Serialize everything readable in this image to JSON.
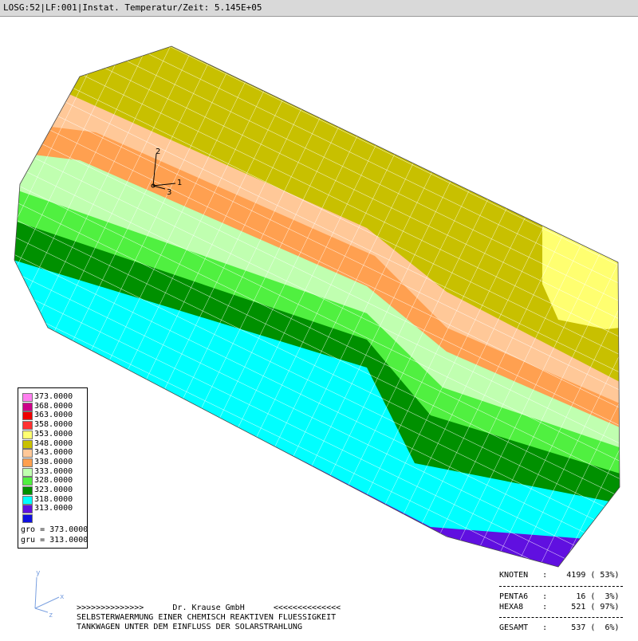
{
  "title": "LOSG:52|LF:001|Instat. Temperatur/Zeit: 5.145E+05",
  "legend": {
    "entries": [
      {
        "label": "373.0000",
        "color": "#ff7fef"
      },
      {
        "label": "368.0000",
        "color": "#cc0088"
      },
      {
        "label": "363.0000",
        "color": "#ee0000"
      },
      {
        "label": "358.0000",
        "color": "#ff3030"
      },
      {
        "label": "353.0000",
        "color": "#ffff70"
      },
      {
        "label": "348.0000",
        "color": "#c8c000"
      },
      {
        "label": "343.0000",
        "color": "#ffc898"
      },
      {
        "label": "338.0000",
        "color": "#ffa050"
      },
      {
        "label": "333.0000",
        "color": "#c0ffb0"
      },
      {
        "label": "328.0000",
        "color": "#50f040"
      },
      {
        "label": "323.0000",
        "color": "#009000"
      },
      {
        "label": "318.0000",
        "color": "#00ffff"
      },
      {
        "label": "313.0000",
        "color": "#6010e0"
      },
      {
        "label": "",
        "color": "#1010e0"
      }
    ],
    "gro": "gro = 373.0000",
    "gru": "gru = 313.0000"
  },
  "triad_labels": {
    "x": "1",
    "y": "2",
    "z": "3"
  },
  "mini_triad": {
    "x": "x",
    "y": "y",
    "z": "z"
  },
  "footer": {
    "line1": ">>>>>>>>>>>>>>      Dr. Krause GmbH      <<<<<<<<<<<<<<",
    "line2": "SELBSTERWAERMUNG EINER CHEMISCH REAKTIVEN FLUESSIGKEIT",
    "line3": "TANKWAGEN UNTER DEM EINFLUSS DER SOLARSTRAHLUNG"
  },
  "stats": {
    "knoten": "KNOTEN   :    4199 ( 53%)",
    "penta6": "PENTA6   :      16 (  3%)",
    "hexa8": "HEXA8    :     521 ( 97%)",
    "gesamt": "GESAMT   :     537 (  6%)"
  }
}
